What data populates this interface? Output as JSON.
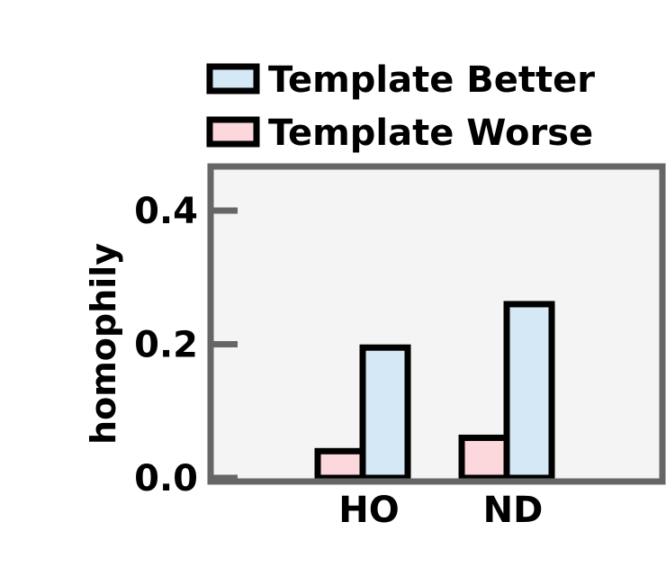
{
  "chart_data": {
    "type": "bar",
    "title": "",
    "xlabel": "",
    "ylabel": "homophily",
    "categories": [
      "HO",
      "ND"
    ],
    "series": [
      {
        "name": "Template Worse",
        "values": [
          0.04,
          0.06
        ]
      },
      {
        "name": "Template Better",
        "values": [
          0.195,
          0.26
        ]
      }
    ],
    "ylim": [
      0.0,
      0.47
    ],
    "yticks": [
      0.0,
      0.2,
      0.4
    ],
    "ytick_labels": [
      "0.0",
      "0.2",
      "0.4"
    ],
    "legend_position": "top, above plot",
    "legend_order": [
      "Template Better",
      "Template Worse"
    ],
    "grid": false,
    "colors": {
      "Template Better": "#d4e9f5",
      "Template Worse": "#fcd8dd",
      "axes_facecolor": "#f4f4f4",
      "frame": "#666666",
      "bar_edge": "#000000"
    }
  }
}
